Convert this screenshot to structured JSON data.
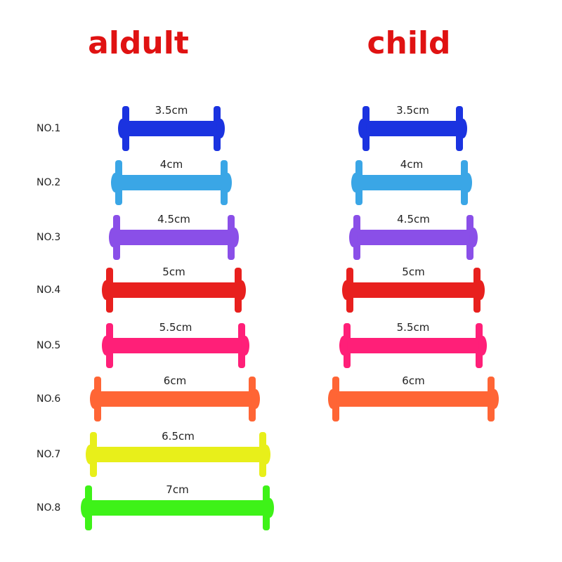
{
  "header": {
    "adult": "aldult",
    "child": "child"
  },
  "rows": [
    "NO.1",
    "NO.2",
    "NO.3",
    "NO.4",
    "NO.5",
    "NO.6",
    "NO.7",
    "NO.8"
  ],
  "adult": [
    {
      "size": "3.5cm",
      "color": "#1b33e0"
    },
    {
      "size": "4cm",
      "color": "#3aa6e6"
    },
    {
      "size": "4.5cm",
      "color": "#8a4fe8"
    },
    {
      "size": "5cm",
      "color": "#e8201e"
    },
    {
      "size": "5.5cm",
      "color": "#ff1f78"
    },
    {
      "size": "6cm",
      "color": "#ff6535"
    },
    {
      "size": "6.5cm",
      "color": "#e8ef1a"
    },
    {
      "size": "7cm",
      "color": "#3ef218"
    }
  ],
  "child": [
    {
      "size": "3.5cm",
      "color": "#1b33e0"
    },
    {
      "size": "4cm",
      "color": "#3aa6e6"
    },
    {
      "size": "4.5cm",
      "color": "#8a4fe8"
    },
    {
      "size": "5cm",
      "color": "#e8201e"
    },
    {
      "size": "5.5cm",
      "color": "#ff1f78"
    },
    {
      "size": "6cm",
      "color": "#ff6535"
    }
  ]
}
